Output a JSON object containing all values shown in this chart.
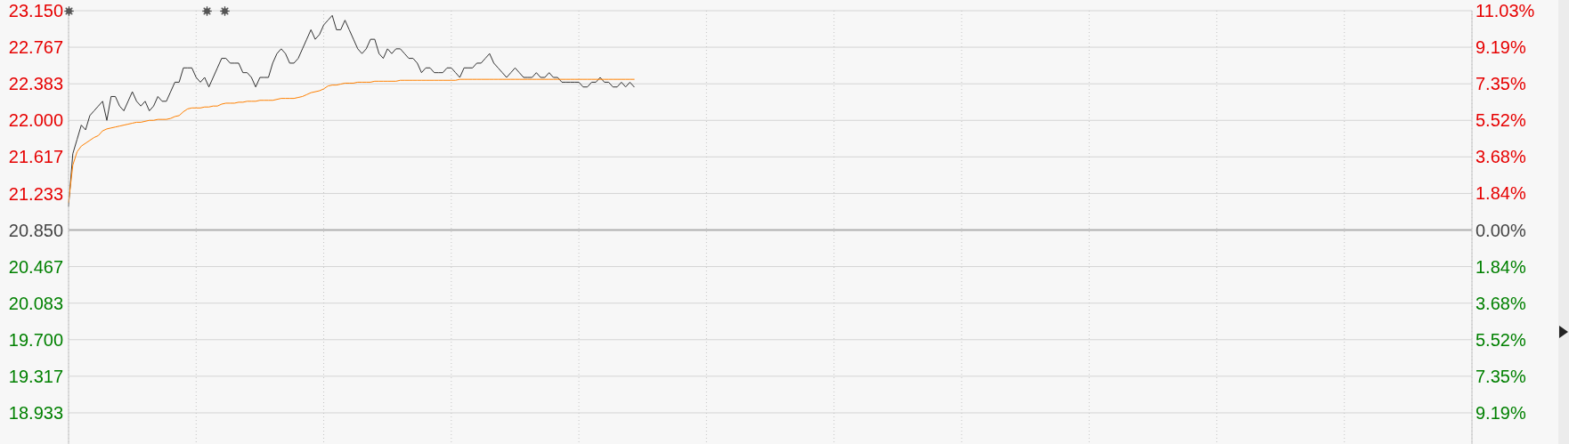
{
  "chart_data": {
    "type": "line",
    "categories": [
      null,
      null,
      null,
      null,
      null,
      null,
      null,
      null,
      null,
      null,
      null,
      null,
      null,
      null,
      null,
      null,
      null,
      null,
      null,
      null,
      null,
      null,
      null,
      null,
      null,
      null,
      null,
      null,
      null,
      null,
      null,
      null,
      null,
      null,
      null,
      null,
      null,
      null,
      null,
      null,
      null,
      null,
      null,
      null,
      null,
      null,
      null,
      null,
      null,
      null,
      null,
      null,
      null,
      null,
      null,
      null,
      null,
      null,
      null,
      null,
      null,
      null,
      null,
      null,
      null,
      null,
      null,
      null,
      null,
      null,
      null,
      null,
      null,
      null,
      null,
      null,
      null,
      null,
      null,
      null,
      null,
      null,
      null,
      null,
      null,
      null,
      null,
      null,
      null,
      null,
      null,
      null,
      null,
      null,
      null,
      null,
      null,
      null,
      null,
      null,
      null,
      null,
      null,
      null,
      null,
      null,
      null,
      null,
      null,
      null,
      null,
      null,
      null,
      null,
      null,
      null,
      null,
      null,
      null,
      null,
      null,
      null,
      null,
      null,
      null,
      null,
      null,
      null,
      null,
      null,
      null,
      null,
      null,
      null,
      null,
      null,
      null,
      null,
      null,
      null,
      null,
      null,
      null,
      null,
      null,
      null,
      null,
      null,
      null,
      null,
      null,
      null,
      null,
      null,
      null,
      null,
      null,
      null,
      null,
      null,
      null,
      null,
      null,
      null,
      null,
      null,
      null,
      null,
      null,
      null,
      null,
      null,
      null,
      null,
      null,
      null,
      null,
      null,
      null,
      null,
      null,
      null,
      null,
      null,
      null,
      null,
      null,
      null,
      null,
      null,
      null,
      null,
      null,
      null,
      null,
      null,
      null,
      null,
      null,
      null,
      null,
      null,
      null,
      null,
      null,
      null,
      null,
      null,
      null,
      null,
      null,
      null,
      null,
      null,
      null,
      null,
      null,
      null,
      null,
      null,
      null,
      null,
      null,
      null,
      null,
      null,
      null,
      null,
      null,
      null,
      null,
      null,
      null,
      null,
      null,
      null,
      null,
      null,
      null,
      null,
      null,
      null,
      null,
      null,
      null,
      null,
      null,
      null,
      null,
      null,
      null,
      null,
      null,
      null,
      null,
      null,
      null,
      null,
      null,
      null,
      null,
      null,
      null,
      null,
      null,
      null,
      null,
      null,
      null,
      null,
      null,
      null,
      null,
      null,
      null,
      null,
      null,
      null,
      null,
      null,
      null,
      null,
      null,
      null,
      null,
      null,
      null,
      null,
      null,
      null,
      null,
      null,
      null,
      null,
      null,
      null,
      null,
      null,
      null,
      null,
      null,
      null,
      null,
      null,
      null,
      null,
      null,
      null,
      null,
      null,
      null,
      null,
      null,
      null,
      null,
      null,
      null,
      null,
      null,
      null,
      null,
      null,
      null,
      null,
      null,
      null,
      null,
      null,
      null,
      null,
      null
    ],
    "series": [
      {
        "color": "#333333",
        "values": [
          21.1,
          21.65,
          21.8,
          21.95,
          21.9,
          22.05,
          22.1,
          22.15,
          22.2,
          22.0,
          22.25,
          22.25,
          22.15,
          22.1,
          22.2,
          22.3,
          22.2,
          22.15,
          22.2,
          22.1,
          22.15,
          22.25,
          22.2,
          22.2,
          22.3,
          22.4,
          22.4,
          22.55,
          22.55,
          22.55,
          22.45,
          22.4,
          22.45,
          22.35,
          22.45,
          22.55,
          22.65,
          22.65,
          22.6,
          22.6,
          22.6,
          22.5,
          22.5,
          22.45,
          22.35,
          22.45,
          22.45,
          22.45,
          22.6,
          22.7,
          22.75,
          22.7,
          22.6,
          22.6,
          22.65,
          22.75,
          22.85,
          22.95,
          22.85,
          22.9,
          23.0,
          23.05,
          23.1,
          22.95,
          22.95,
          23.05,
          22.95,
          22.85,
          22.75,
          22.7,
          22.75,
          22.85,
          22.85,
          22.7,
          22.65,
          22.75,
          22.7,
          22.75,
          22.75,
          22.7,
          22.65,
          22.65,
          22.6,
          22.5,
          22.55,
          22.55,
          22.5,
          22.5,
          22.5,
          22.55,
          22.55,
          22.5,
          22.45,
          22.55,
          22.55,
          22.55,
          22.6,
          22.6,
          22.65,
          22.7,
          22.6,
          22.55,
          22.5,
          22.45,
          22.5,
          22.55,
          22.5,
          22.45,
          22.45,
          22.45,
          22.5,
          22.45,
          22.45,
          22.5,
          22.45,
          22.45,
          22.4,
          22.4,
          22.4,
          22.4,
          22.4,
          22.35,
          22.35,
          22.4,
          22.4,
          22.45,
          22.4,
          22.4,
          22.35,
          22.35,
          22.4,
          22.35,
          22.4,
          22.35,
          null,
          null,
          null,
          null,
          null,
          null,
          null,
          null,
          null,
          null,
          null,
          null,
          null,
          null,
          null,
          null,
          null,
          null,
          null,
          null,
          null,
          null,
          null,
          null,
          null,
          null,
          null,
          null,
          null,
          null,
          null,
          null,
          null,
          null,
          null,
          null,
          null,
          null,
          null,
          null,
          null,
          null,
          null,
          null,
          null,
          null,
          null,
          null,
          null,
          null,
          null,
          null,
          null,
          null,
          null,
          null,
          null,
          null,
          null,
          null,
          null,
          null,
          null,
          null,
          null,
          null,
          null,
          null,
          null,
          null,
          null,
          null,
          null,
          null,
          null,
          null,
          null,
          null,
          null,
          null,
          null,
          null,
          null,
          null,
          null,
          null,
          null,
          null,
          null,
          null,
          null,
          null,
          null,
          null,
          null,
          null,
          null,
          null,
          null,
          null,
          null,
          null,
          null,
          null,
          null,
          null,
          null,
          null,
          null,
          null,
          null,
          null,
          null,
          null,
          null,
          null,
          null,
          null,
          null,
          null,
          null,
          null,
          null,
          null,
          null,
          null,
          null,
          null,
          null,
          null,
          null,
          null,
          null,
          null,
          null,
          null,
          null,
          null,
          null,
          null,
          null,
          null,
          null,
          null,
          null,
          null,
          null,
          null,
          null,
          null,
          null,
          null,
          null,
          null,
          null,
          null,
          null,
          null,
          null,
          null,
          null,
          null,
          null,
          null,
          null,
          null,
          null,
          null,
          null,
          null,
          null,
          null,
          null,
          null,
          null,
          null,
          null,
          null,
          null,
          null,
          null,
          null,
          null,
          null,
          null,
          null,
          null,
          null,
          null,
          null,
          null,
          null,
          null,
          null,
          null,
          null,
          null
        ]
      },
      {
        "color": "#ff8000",
        "values": [
          21.14,
          21.53,
          21.67,
          21.73,
          21.76,
          21.79,
          21.82,
          21.84,
          21.89,
          21.91,
          21.92,
          21.93,
          21.94,
          21.95,
          21.96,
          21.97,
          21.98,
          21.98,
          21.99,
          22.0,
          22.0,
          22.01,
          22.01,
          22.01,
          22.02,
          22.04,
          22.05,
          22.09,
          22.12,
          22.13,
          22.13,
          22.13,
          22.14,
          22.14,
          22.15,
          22.15,
          22.17,
          22.18,
          22.18,
          22.18,
          22.19,
          22.19,
          22.2,
          22.2,
          22.2,
          22.21,
          22.21,
          22.21,
          22.21,
          22.22,
          22.23,
          22.23,
          22.23,
          22.23,
          22.24,
          22.25,
          22.27,
          22.29,
          22.3,
          22.31,
          22.33,
          22.36,
          22.37,
          22.37,
          22.38,
          22.39,
          22.39,
          22.39,
          22.4,
          22.4,
          22.4,
          22.4,
          22.41,
          22.41,
          22.41,
          22.41,
          22.41,
          22.41,
          22.42,
          22.42,
          22.42,
          22.42,
          22.42,
          22.42,
          22.42,
          22.42,
          22.42,
          22.42,
          22.42,
          22.42,
          22.42,
          22.42,
          22.43,
          22.43,
          22.43,
          22.43,
          22.43,
          22.43,
          22.43,
          22.43,
          22.43,
          22.43,
          22.43,
          22.43,
          22.43,
          22.43,
          22.43,
          22.43,
          22.43,
          22.43,
          22.43,
          22.43,
          22.43,
          22.43,
          22.43,
          22.43,
          22.43,
          22.43,
          22.43,
          22.43,
          22.43,
          22.43,
          22.43,
          22.43,
          22.43,
          22.43,
          22.43,
          22.43,
          22.43,
          22.43,
          22.43,
          22.43,
          22.43,
          22.43,
          null,
          null,
          null,
          null,
          null,
          null,
          null,
          null,
          null,
          null,
          null,
          null,
          null,
          null,
          null,
          null,
          null,
          null,
          null,
          null,
          null,
          null,
          null,
          null,
          null,
          null,
          null,
          null,
          null,
          null,
          null,
          null,
          null,
          null,
          null,
          null,
          null,
          null,
          null,
          null,
          null,
          null,
          null,
          null,
          null,
          null,
          null,
          null,
          null,
          null,
          null,
          null,
          null,
          null,
          null,
          null,
          null,
          null,
          null,
          null,
          null,
          null,
          null,
          null,
          null,
          null,
          null,
          null,
          null,
          null,
          null,
          null,
          null,
          null,
          null,
          null,
          null,
          null,
          null,
          null,
          null,
          null,
          null,
          null,
          null,
          null,
          null,
          null,
          null,
          null,
          null,
          null,
          null,
          null,
          null,
          null,
          null,
          null,
          null,
          null,
          null,
          null,
          null,
          null,
          null,
          null,
          null,
          null,
          null,
          null,
          null,
          null,
          null,
          null,
          null,
          null,
          null,
          null,
          null,
          null,
          null,
          null,
          null,
          null,
          null,
          null,
          null,
          null,
          null,
          null,
          null,
          null,
          null,
          null,
          null,
          null,
          null,
          null,
          null,
          null,
          null,
          null,
          null,
          null,
          null,
          null,
          null,
          null,
          null,
          null,
          null,
          null,
          null,
          null,
          null,
          null,
          null,
          null,
          null,
          null,
          null,
          null,
          null,
          null,
          null,
          null,
          null,
          null,
          null,
          null,
          null,
          null,
          null,
          null,
          null,
          null,
          null,
          null,
          null,
          null,
          null,
          null,
          null,
          null,
          null,
          null,
          null,
          null,
          null,
          null,
          null,
          null,
          null,
          null,
          null,
          null,
          null
        ]
      }
    ],
    "ylim": [
      18.55,
      23.15
    ],
    "yticks": [
      {
        "value": 23.15,
        "label": "23.150"
      },
      {
        "value": 22.767,
        "label": "22.767"
      },
      {
        "value": 22.383,
        "label": "22.383"
      },
      {
        "value": 22.0,
        "label": "22.000"
      },
      {
        "value": 21.617,
        "label": "21.617"
      },
      {
        "value": 21.233,
        "label": "21.233"
      },
      {
        "value": 20.85,
        "label": "20.850"
      },
      {
        "value": 20.467,
        "label": "20.467"
      },
      {
        "value": 20.083,
        "label": "20.083"
      },
      {
        "value": 19.7,
        "label": "19.700"
      },
      {
        "value": 19.317,
        "label": "19.317"
      },
      {
        "value": 18.933,
        "label": "18.933"
      }
    ],
    "y2lim": [
      -11.03,
      11.03
    ],
    "y2ticks": [
      {
        "value": 11.03,
        "label": "11.03%"
      },
      {
        "value": 9.19,
        "label": "9.19%"
      },
      {
        "value": 7.35,
        "label": "7.35%"
      },
      {
        "value": 5.52,
        "label": "5.52%"
      },
      {
        "value": 3.68,
        "label": "3.68%"
      },
      {
        "value": 1.84,
        "label": "1.84%"
      },
      {
        "value": 0,
        "label": "0.00%"
      },
      {
        "value": -1.84,
        "label": "1.84%"
      },
      {
        "value": -3.68,
        "label": "3.68%"
      },
      {
        "value": -5.52,
        "label": "5.52%"
      },
      {
        "value": -7.35,
        "label": "7.35%"
      },
      {
        "value": -9.19,
        "label": "9.19%"
      }
    ],
    "ref_lines": [
      {
        "axis": "y",
        "value": 20.85,
        "color": "#b0b0b0",
        "line_style": "solid"
      }
    ],
    "grid": true,
    "marker": "none",
    "line_style": "solid"
  }
}
